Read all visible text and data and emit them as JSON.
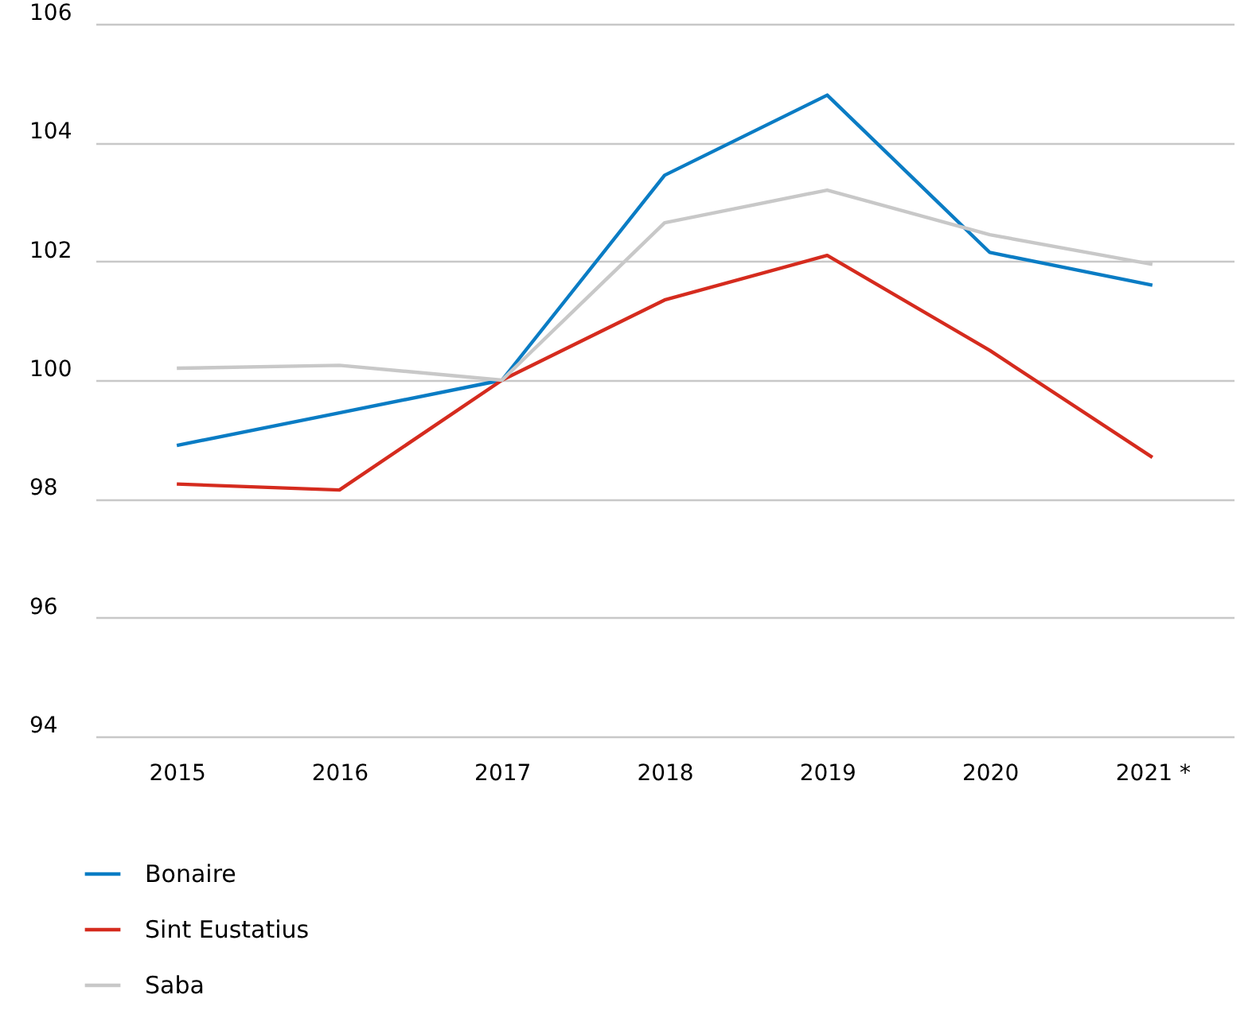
{
  "chart_data": {
    "type": "line",
    "categories": [
      "2015",
      "2016",
      "2017",
      "2018",
      "2019",
      "2020",
      "2021 *"
    ],
    "series": [
      {
        "name": "Bonaire",
        "color": "#0a7cc4",
        "values": [
          98.9,
          99.45,
          100,
          103.45,
          104.8,
          102.15,
          101.6
        ]
      },
      {
        "name": "Sint Eustatius",
        "color": "#d52b1e",
        "values": [
          98.25,
          98.15,
          100,
          101.35,
          102.1,
          100.5,
          98.7
        ]
      },
      {
        "name": "Saba",
        "color": "#c8c8c8",
        "values": [
          100.2,
          100.25,
          100,
          102.65,
          103.2,
          102.45,
          101.95
        ]
      }
    ],
    "ylim": [
      94,
      106
    ],
    "yticks": [
      94,
      96,
      98,
      100,
      102,
      104,
      106
    ],
    "grid": "y",
    "legend": "bottom",
    "marker": "none",
    "line_style": "solid"
  }
}
